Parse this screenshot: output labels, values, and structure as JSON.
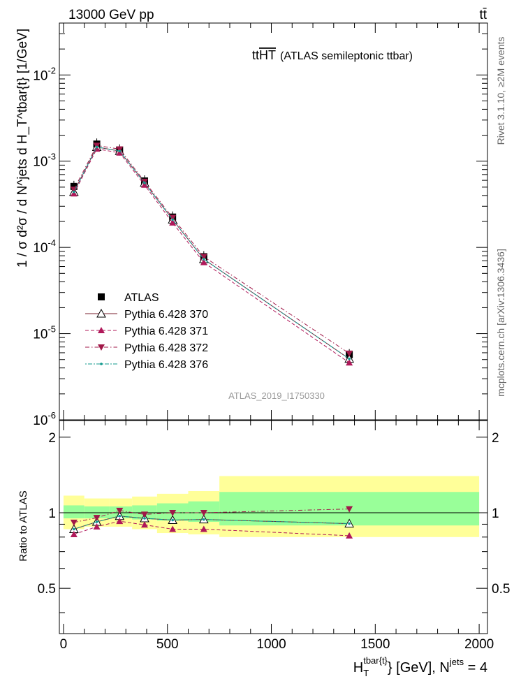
{
  "header": {
    "energy_label": "13000 GeV pp",
    "process_label": "tt̄"
  },
  "side_labels": {
    "rivet": "Rivet 3.1.10, ≥2M events",
    "mcplots": "mcplots.cern.ch [arXiv:1306.3436]"
  },
  "chart_data": [
    {
      "type": "line",
      "panel": "main",
      "title": "tt",
      "title_overline": "HT",
      "subtitle": "(ATLAS semileptonic ttbar)",
      "watermark": "ATLAS_2019_I1750330",
      "ylabel": "1 / σ d²σ / d N^jets d H_T^tbar{t} [1/GeV]",
      "yscale": "log",
      "ylim": [
        1e-06,
        0.04
      ],
      "xlim": [
        -20,
        2040
      ],
      "y_ticks": [
        {
          "v": 0.01,
          "m": "10",
          "e": "-2"
        },
        {
          "v": 0.001,
          "m": "10",
          "e": "-3"
        },
        {
          "v": 0.0001,
          "m": "10",
          "e": "-4"
        },
        {
          "v": 1e-05,
          "m": "10",
          "e": "-5"
        },
        {
          "v": 1e-06,
          "m": "10",
          "e": "-6"
        }
      ],
      "legend_position": "lower-left",
      "x": [
        50,
        160,
        270,
        390,
        525,
        675,
        1375
      ],
      "series": [
        {
          "name": "ATLAS",
          "color": "#000000",
          "marker": "square",
          "style": "none",
          "values": [
            0.00051,
            0.00158,
            0.00135,
            0.00059,
            0.000225,
            7.8e-05,
            5.7e-06
          ]
        },
        {
          "name": "Pythia 6.428 370",
          "color": "#7a1f2e",
          "marker": "open-triangle-up",
          "style": "solid",
          "values": [
            0.00044,
            0.00146,
            0.00131,
            0.00056,
            0.00021,
            7.3e-05,
            5.1e-06
          ]
        },
        {
          "name": "Pythia 6.428 371",
          "color": "#b0185a",
          "marker": "filled-triangle-up",
          "style": "dashed",
          "values": [
            0.00042,
            0.00139,
            0.00125,
            0.00053,
            0.000193,
            6.7e-05,
            4.6e-06
          ]
        },
        {
          "name": "Pythia 6.428 372",
          "color": "#a01848",
          "marker": "filled-triangle-down",
          "style": "dashdot",
          "values": [
            0.00047,
            0.00152,
            0.00138,
            0.00058,
            0.000221,
            7.8e-05,
            5.9e-06
          ]
        },
        {
          "name": "Pythia 6.428 376",
          "color": "#11998e",
          "marker": "small-dot",
          "style": "dotdash",
          "values": [
            0.00044,
            0.00146,
            0.00131,
            0.00056,
            0.00021,
            7.3e-05,
            5.1e-06
          ]
        }
      ]
    },
    {
      "type": "line",
      "panel": "ratio",
      "ylabel": "Ratio to ATLAS",
      "ylim": [
        0.33,
        2.33
      ],
      "y_ticks": [
        0.5,
        1,
        2
      ],
      "y_tick_labels": [
        "0.5",
        "1",
        "2"
      ],
      "xlim": [
        -20,
        2040
      ],
      "x_ticks": [
        0,
        500,
        1000,
        1500,
        2000
      ],
      "x_tick_labels": [
        "0",
        "500",
        "1000",
        "1500",
        "2000"
      ],
      "xlabel_main": "H",
      "xlabel_sub": "T",
      "xlabel_sup": "tbar{t}",
      "xlabel_mid": "} [GeV], N",
      "xlabel_sup2": "jets",
      "xlabel_end": " = 4",
      "bins": [
        0,
        100,
        220,
        330,
        450,
        600,
        750,
        2000
      ],
      "band_inner": [
        {
          "lo": 0.95,
          "hi": 1.07
        },
        {
          "lo": 0.95,
          "hi": 1.06
        },
        {
          "lo": 0.95,
          "hi": 1.06
        },
        {
          "lo": 0.94,
          "hi": 1.07
        },
        {
          "lo": 0.93,
          "hi": 1.09
        },
        {
          "lo": 0.92,
          "hi": 1.11
        },
        {
          "lo": 0.89,
          "hi": 1.21
        }
      ],
      "band_outer": [
        {
          "lo": 0.86,
          "hi": 1.17
        },
        {
          "lo": 0.88,
          "hi": 1.14
        },
        {
          "lo": 0.88,
          "hi": 1.14
        },
        {
          "lo": 0.86,
          "hi": 1.16
        },
        {
          "lo": 0.83,
          "hi": 1.19
        },
        {
          "lo": 0.82,
          "hi": 1.22
        },
        {
          "lo": 0.8,
          "hi": 1.4
        }
      ],
      "x": [
        50,
        160,
        270,
        390,
        525,
        675,
        1375
      ],
      "series": [
        {
          "name": "Pythia 6.428 370",
          "color": "#7a1f2e",
          "marker": "open-triangle-up",
          "style": "solid",
          "values": [
            0.86,
            0.92,
            0.97,
            0.95,
            0.935,
            0.94,
            0.905
          ]
        },
        {
          "name": "Pythia 6.428 371",
          "color": "#b0185a",
          "marker": "filled-triangle-up",
          "style": "dashed",
          "values": [
            0.82,
            0.88,
            0.925,
            0.895,
            0.86,
            0.86,
            0.81
          ]
        },
        {
          "name": "Pythia 6.428 372",
          "color": "#a01848",
          "marker": "filled-triangle-down",
          "style": "dashdot",
          "values": [
            0.915,
            0.955,
            1.02,
            0.985,
            1.0,
            1.0,
            1.035
          ]
        },
        {
          "name": "Pythia 6.428 376",
          "color": "#11998e",
          "marker": "small-dot",
          "style": "dotdash",
          "values": [
            0.86,
            0.92,
            0.97,
            0.95,
            0.935,
            0.94,
            0.905
          ]
        }
      ]
    }
  ]
}
